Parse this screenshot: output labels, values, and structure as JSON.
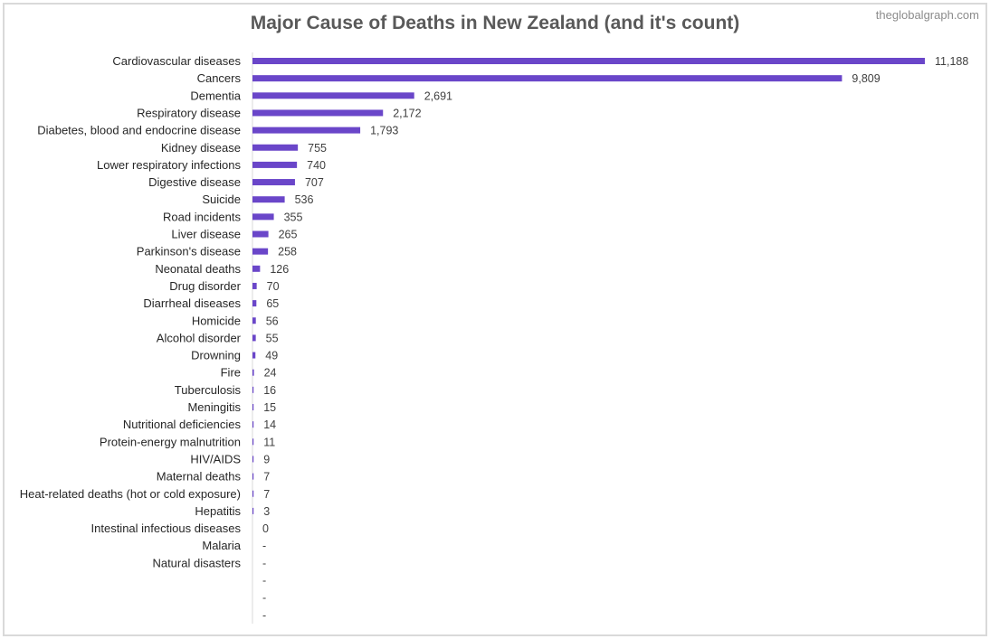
{
  "chart_data": {
    "type": "bar",
    "orientation": "horizontal",
    "title": "Major Cause of Deaths in New Zealand (and it's count)",
    "watermark": "theglobalgraph.com",
    "xlim": [
      0,
      11188
    ],
    "grid": false,
    "bar_color": "#6a46c9",
    "categories": [
      "Cardiovascular diseases",
      "Cancers",
      "Dementia",
      "Respiratory disease",
      "Diabetes, blood and endocrine disease",
      "Kidney disease",
      "Lower respiratory infections",
      "Digestive disease",
      "Suicide",
      "Road incidents",
      "Liver disease",
      "Parkinson's disease",
      "Neonatal deaths",
      "Drug disorder",
      "Diarrheal diseases",
      "Homicide",
      "Alcohol disorder",
      "Drowning",
      "Fire",
      "Tuberculosis",
      "Meningitis",
      "Nutritional deficiencies",
      "Protein-energy malnutrition",
      "HIV/AIDS",
      "Maternal deaths",
      "Heat-related deaths (hot or cold exposure)",
      "Hepatitis",
      "Intestinal infectious diseases",
      "Malaria",
      "Natural disasters",
      "",
      "",
      ""
    ],
    "values": [
      11188,
      9809,
      2691,
      2172,
      1793,
      755,
      740,
      707,
      536,
      355,
      265,
      258,
      126,
      70,
      65,
      56,
      55,
      49,
      24,
      16,
      15,
      14,
      11,
      9,
      7,
      7,
      3,
      0,
      null,
      null,
      null,
      null,
      null
    ],
    "value_labels": [
      "11,188",
      "9,809",
      "2,691",
      "2,172",
      "1,793",
      "755",
      "740",
      "707",
      "536",
      "355",
      "265",
      "258",
      "126",
      "70",
      "65",
      "56",
      "55",
      "49",
      "24",
      "16",
      "15",
      "14",
      "11",
      "9",
      "7",
      "7",
      "3",
      "0",
      "-",
      "-",
      "-",
      "-",
      "-"
    ]
  }
}
